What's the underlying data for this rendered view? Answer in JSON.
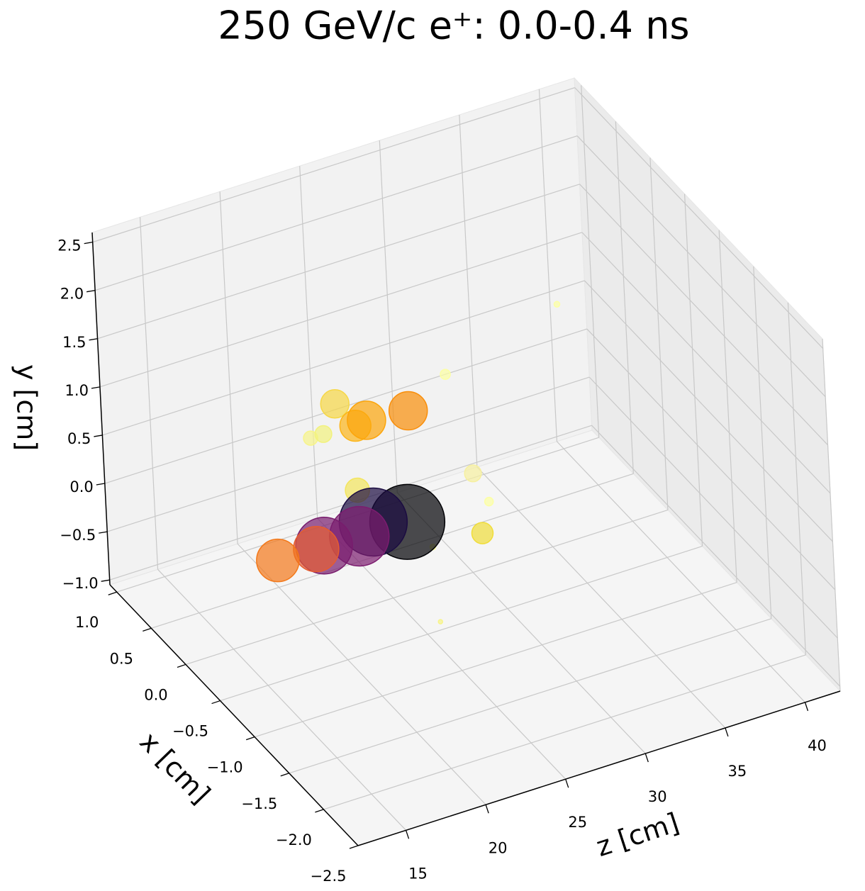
{
  "chart_data": {
    "type": "scatter3d",
    "title": "250 GeV/c e⁺: 0.0-0.4 ns",
    "x_label": "x [cm]",
    "y_label": "y [cm]",
    "z_label": "z [cm]",
    "xlim": [
      -2.5,
      1.1
    ],
    "ylim": [
      -1.05,
      2.6
    ],
    "zlim": [
      12,
      42.2
    ],
    "xticks": [
      {
        "value": 1.0,
        "label": "1.0"
      },
      {
        "value": 0.5,
        "label": "0.5"
      },
      {
        "value": 0.0,
        "label": "0.0"
      },
      {
        "value": -0.5,
        "label": "−0.5"
      },
      {
        "value": -1.0,
        "label": "−1.0"
      },
      {
        "value": -1.5,
        "label": "−1.5"
      },
      {
        "value": -2.0,
        "label": "−2.0"
      },
      {
        "value": -2.5,
        "label": "−2.5"
      }
    ],
    "yticks": [
      {
        "value": -1.0,
        "label": "−1.0"
      },
      {
        "value": -0.5,
        "label": "−0.5"
      },
      {
        "value": 0.0,
        "label": "0.0"
      },
      {
        "value": 0.5,
        "label": "0.5"
      },
      {
        "value": 1.0,
        "label": "1.0"
      },
      {
        "value": 1.5,
        "label": "1.5"
      },
      {
        "value": 2.0,
        "label": "2.0"
      },
      {
        "value": 2.5,
        "label": "2.5"
      }
    ],
    "zticks": [
      15,
      20,
      25,
      30,
      35,
      40
    ],
    "grid": true,
    "x": [
      0,
      0,
      0,
      0,
      0,
      0,
      -1.5,
      -1,
      0,
      0,
      0,
      0,
      0,
      0,
      0,
      0,
      0,
      0,
      0,
      0
    ],
    "y": [
      1.41,
      -0.38,
      1.06,
      -0.04,
      -0.68,
      -0.66,
      0.0,
      1.13,
      0.85,
      0.85,
      1.12,
      0.83,
      0.85,
      0.81,
      -0.32,
      -0.21,
      -0.31,
      -0.29,
      -0.3,
      -0.29
    ],
    "z": [
      36.0,
      31.2,
      28.9,
      30.3,
      30.7,
      27.6,
      21.8,
      19.1,
      20.4,
      21.2,
      22.0,
      23.2,
      23.9,
      26.5,
      26.1,
      24.0,
      23.1,
      20.9,
      20.4,
      18.0
    ],
    "sizes": [
      16,
      36,
      50,
      140,
      225,
      16,
      9,
      290,
      100,
      140,
      400,
      480,
      730,
      730,
      2800,
      2300,
      1760,
      1600,
      1020,
      900
    ],
    "colors": [
      "#fcffa4",
      "#fcffa4",
      "#fcffa4",
      "#f6f0a0",
      "#f0dd3a",
      "#fcffa4",
      "#f7f48a",
      "#f3e55d",
      "#f7f48a",
      "#f2f27d",
      "#f6d746",
      "#fcb519",
      "#fca50a",
      "#f98e09",
      "#000004",
      "#1b0c41",
      "#7c1d6f",
      "#781c6d",
      "#e55c30",
      "#f37819"
    ]
  }
}
